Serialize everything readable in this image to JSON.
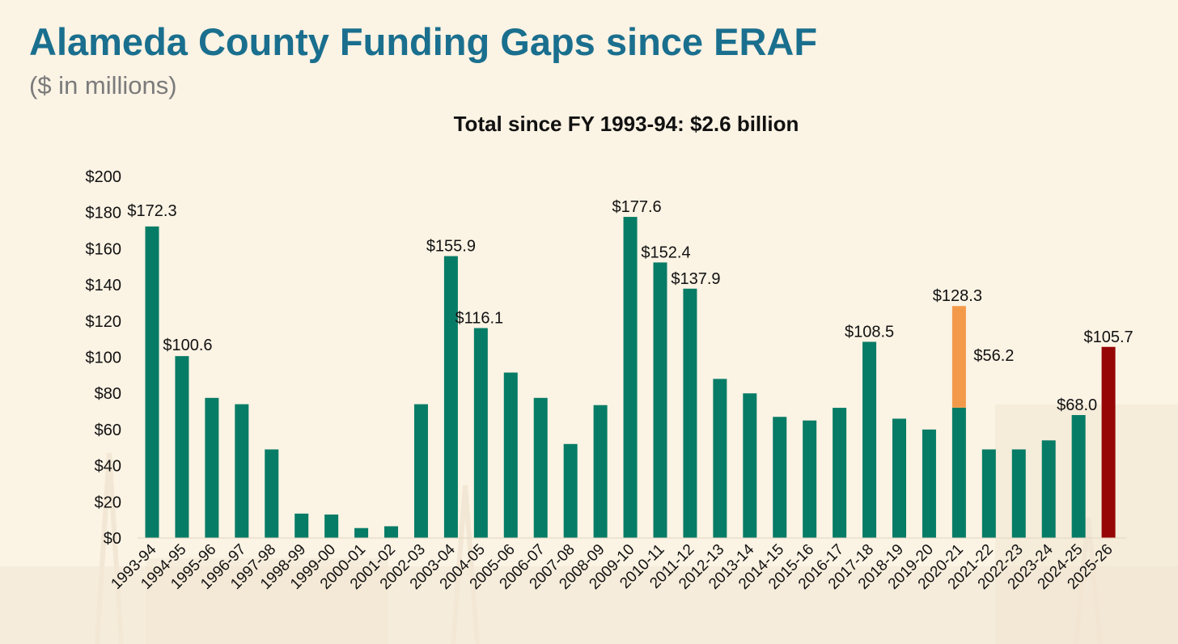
{
  "header": {
    "title": "Alameda County Funding Gaps since ERAF",
    "subtitle": "($ in millions)"
  },
  "colors": {
    "title": "#1a6f8e",
    "bar": "#067c66",
    "highlight_top": "#f39a4a",
    "current_year": "#960606",
    "background": "#fbf3e4"
  },
  "chart_data": {
    "type": "bar",
    "title": "Total since FY 1993-94: $2.6 billion",
    "xlabel": "",
    "ylabel": "",
    "ylim": [
      0,
      200
    ],
    "y_ticks": [
      "$0",
      "$20",
      "$40",
      "$60",
      "$80",
      "$100",
      "$120",
      "$140",
      "$160",
      "$180",
      "$200"
    ],
    "grid": false,
    "stacked": true,
    "categories": [
      "1993-94",
      "1994-95",
      "1995-96",
      "1996-97",
      "1997-98",
      "1998-99",
      "1999-00",
      "2000-01",
      "2001-02",
      "2002-03",
      "2003-04",
      "2004-05",
      "2005-06",
      "2006-07",
      "2007-08",
      "2008-09",
      "2009-10",
      "2010-11",
      "2011-12",
      "2012-13",
      "2013-14",
      "2014-15",
      "2015-16",
      "2016-17",
      "2017-18",
      "2018-19",
      "2019-20",
      "2020-21",
      "2021-22",
      "2022-23",
      "2023-24",
      "2024-25",
      "2025-26"
    ],
    "series": [
      {
        "values": [
          172.3,
          100.6,
          77.5,
          74,
          49,
          13.5,
          13,
          5.5,
          6.5,
          74,
          155.9,
          116.1,
          91.5,
          77.5,
          52,
          73.5,
          177.6,
          152.4,
          137.9,
          88,
          80,
          67,
          65,
          72,
          108.5,
          66,
          60,
          72.1,
          49,
          49,
          54,
          68.0,
          0
        ]
      },
      {
        "values": [
          0,
          0,
          0,
          0,
          0,
          0,
          0,
          0,
          0,
          0,
          0,
          0,
          0,
          0,
          0,
          0,
          0,
          0,
          0,
          0,
          0,
          0,
          0,
          0,
          0,
          0,
          0,
          56.2,
          0,
          0,
          0,
          0,
          0
        ]
      },
      {
        "values": [
          0,
          0,
          0,
          0,
          0,
          0,
          0,
          0,
          0,
          0,
          0,
          0,
          0,
          0,
          0,
          0,
          0,
          0,
          0,
          0,
          0,
          0,
          0,
          0,
          0,
          0,
          0,
          0,
          0,
          0,
          0,
          0,
          105.7
        ]
      }
    ],
    "data_labels": [
      {
        "category": "1993-94",
        "text": "$172.3"
      },
      {
        "category": "1994-95",
        "text": "$100.6"
      },
      {
        "category": "2003-04",
        "text": "$155.9"
      },
      {
        "category": "2004-05",
        "text": "$116.1"
      },
      {
        "category": "2009-10",
        "text": "$177.6"
      },
      {
        "category": "2010-11",
        "text": "$152.4"
      },
      {
        "category": "2011-12",
        "text": "$137.9"
      },
      {
        "category": "2017-18",
        "text": "$108.5"
      },
      {
        "category": "2020-21",
        "text": "$128.3"
      },
      {
        "category": "2020-21",
        "text": "$56.2"
      },
      {
        "category": "2024-25",
        "text": "$68.0"
      },
      {
        "category": "2025-26",
        "text": "$105.7"
      }
    ]
  }
}
